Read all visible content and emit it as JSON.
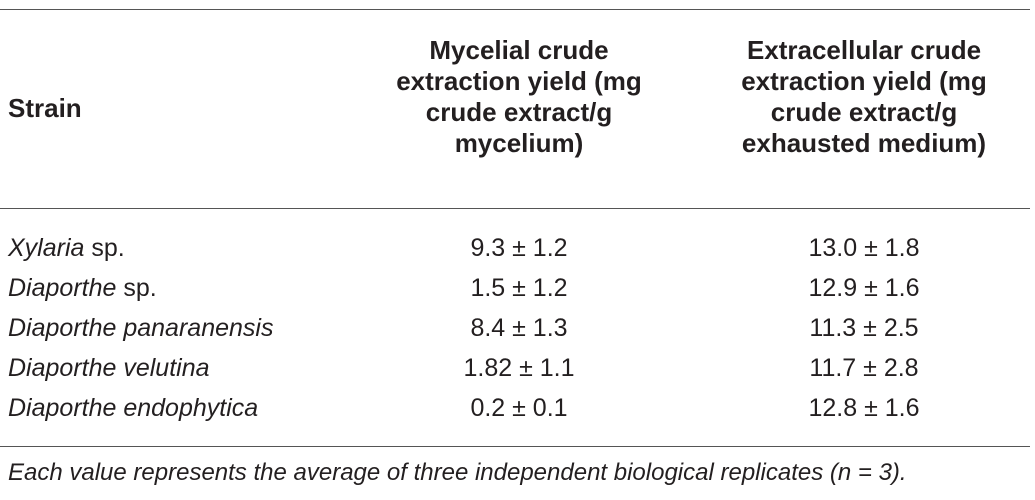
{
  "table": {
    "headers": {
      "strain": "Strain",
      "mycelial": [
        "Mycelial crude",
        "extraction yield (mg",
        "crude extract/g",
        "mycelium)"
      ],
      "extracellular": [
        "Extracellular crude",
        "extraction yield (mg",
        "crude extract/g",
        "exhausted medium)"
      ]
    },
    "rows": [
      {
        "genus": "Xylaria",
        "suffix": " sp.",
        "mycelial": "9.3 ± 1.2",
        "extracellular": "13.0 ± 1.8"
      },
      {
        "genus": "Diaporthe",
        "suffix": " sp.",
        "mycelial": "1.5 ± 1.2",
        "extracellular": "12.9 ± 1.6"
      },
      {
        "genus": "Diaporthe panaranensis",
        "suffix": "",
        "mycelial": "8.4 ± 1.3",
        "extracellular": "11.3 ± 2.5"
      },
      {
        "genus": "Diaporthe velutina",
        "suffix": "",
        "mycelial": "1.82 ± 1.1",
        "extracellular": "11.7 ± 2.8"
      },
      {
        "genus": "Diaporthe endophytica",
        "suffix": "",
        "mycelial": "0.2 ± 0.1",
        "extracellular": "12.8 ± 1.6"
      }
    ],
    "footnote": "Each value represents the average of three independent biological replicates (n = 3)."
  }
}
